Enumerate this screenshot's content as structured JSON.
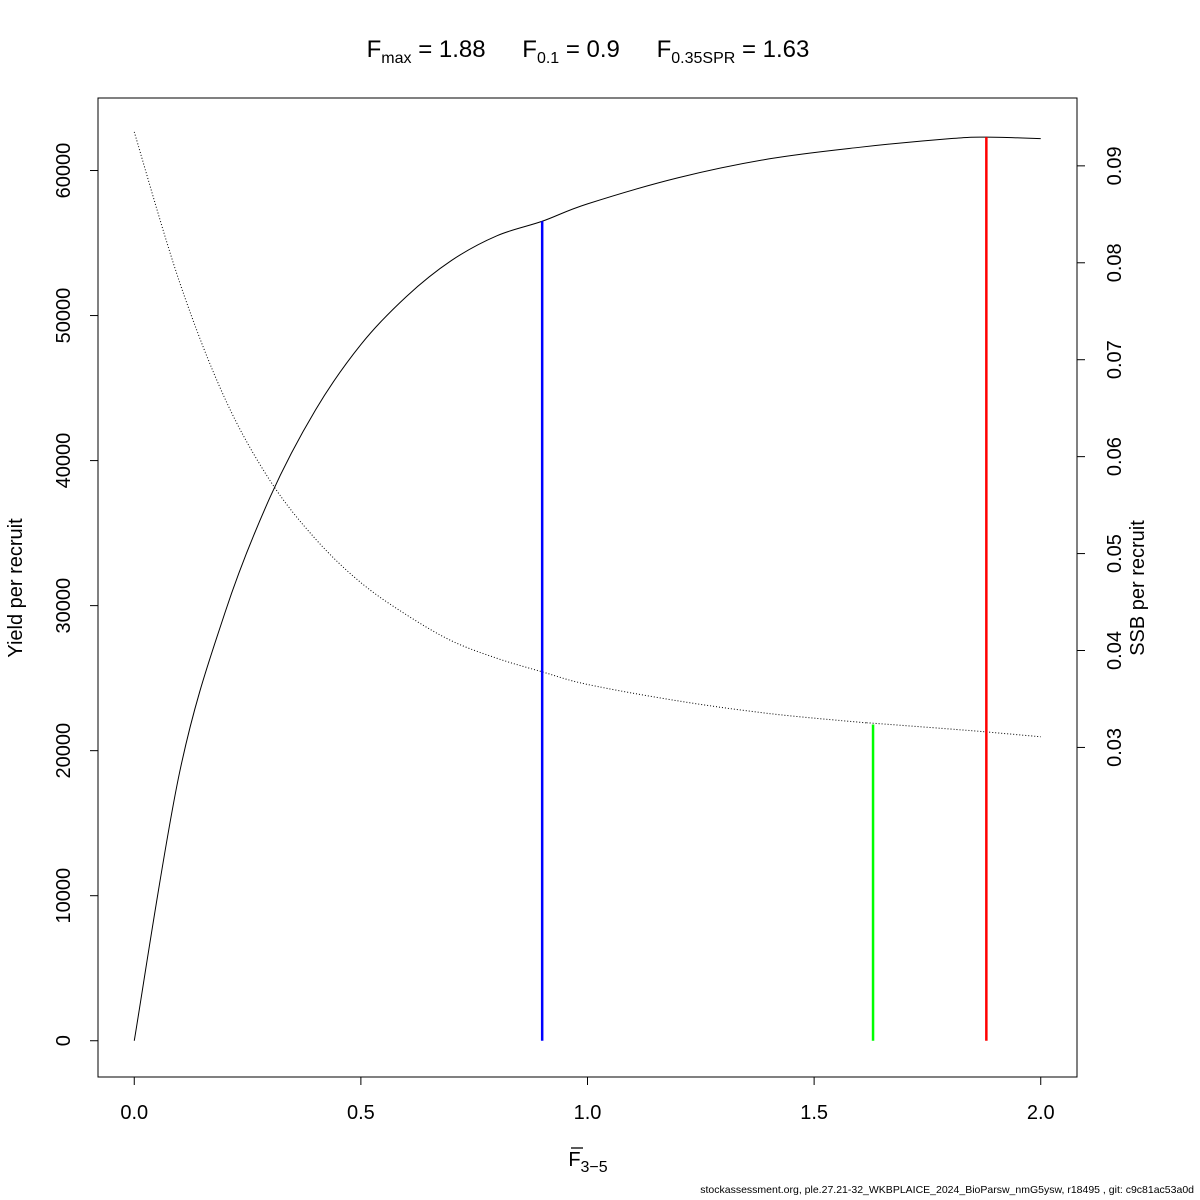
{
  "title": {
    "fmax": {
      "main": "F",
      "sub": "max",
      "rest": " = 1.88"
    },
    "f01": {
      "main": "F",
      "sub": "0.1",
      "rest": " = 0.9"
    },
    "fspr": {
      "main": "F",
      "sub": "0.35SPR",
      "rest": " = 1.63"
    }
  },
  "chart_data": {
    "type": "line",
    "xlabel": {
      "main": "F",
      "sub": "3−5",
      "overline": true
    },
    "ylabel_left": "Yield per recruit",
    "ylabel_right": "SSB per recruit",
    "xlim": [
      -0.08,
      2.08
    ],
    "ylim_left": [
      -2500,
      65000
    ],
    "ylim_right": [
      -0.004,
      0.097
    ],
    "x_ticks": [
      "0.0",
      "0.5",
      "1.0",
      "1.5",
      "2.0"
    ],
    "y_left_ticks": [
      "0",
      "10000",
      "20000",
      "30000",
      "40000",
      "50000",
      "60000"
    ],
    "y_right_ticks": [
      "0.03",
      "0.04",
      "0.05",
      "0.06",
      "0.07",
      "0.08",
      "0.09"
    ],
    "series": [
      {
        "name": "",
        "axis": "left",
        "style": "solid",
        "x": [
          0,
          0.1,
          0.2,
          0.3,
          0.4,
          0.5,
          0.6,
          0.7,
          0.8,
          0.9,
          1.0,
          1.2,
          1.4,
          1.6,
          1.8,
          1.88,
          2.0
        ],
        "y": [
          0,
          18500,
          29500,
          37500,
          43500,
          48000,
          51300,
          53800,
          55500,
          56500,
          57700,
          59500,
          60800,
          61600,
          62200,
          62300,
          62200
        ]
      },
      {
        "name": "",
        "axis": "right",
        "style": "dotted",
        "x": [
          0,
          0.1,
          0.2,
          0.3,
          0.4,
          0.5,
          0.6,
          0.7,
          0.8,
          0.9,
          1.0,
          1.2,
          1.4,
          1.6,
          1.63,
          1.8,
          1.88,
          2.0
        ],
        "y": [
          0.0935,
          0.078,
          0.066,
          0.0575,
          0.0515,
          0.047,
          0.0437,
          0.041,
          0.0392,
          0.0378,
          0.0365,
          0.0348,
          0.0335,
          0.0326,
          0.0325,
          0.0319,
          0.0316,
          0.0311
        ]
      }
    ],
    "reference_lines": [
      {
        "label": "F0.1",
        "x": 0.9,
        "y_top": 56500,
        "color": "#0000ff"
      },
      {
        "label": "F0.35SPR",
        "x": 1.63,
        "y_top": 21800,
        "color": "#00ff00"
      },
      {
        "label": "Fmax",
        "x": 1.88,
        "y_top": 62300,
        "color": "#ff0000"
      }
    ]
  },
  "footer": "stockassessment.org, ple.27.21-32_WKBPLAICE_2024_BioParsw_nmG5ysw, r18495 , git: c9c81ac53a0d"
}
